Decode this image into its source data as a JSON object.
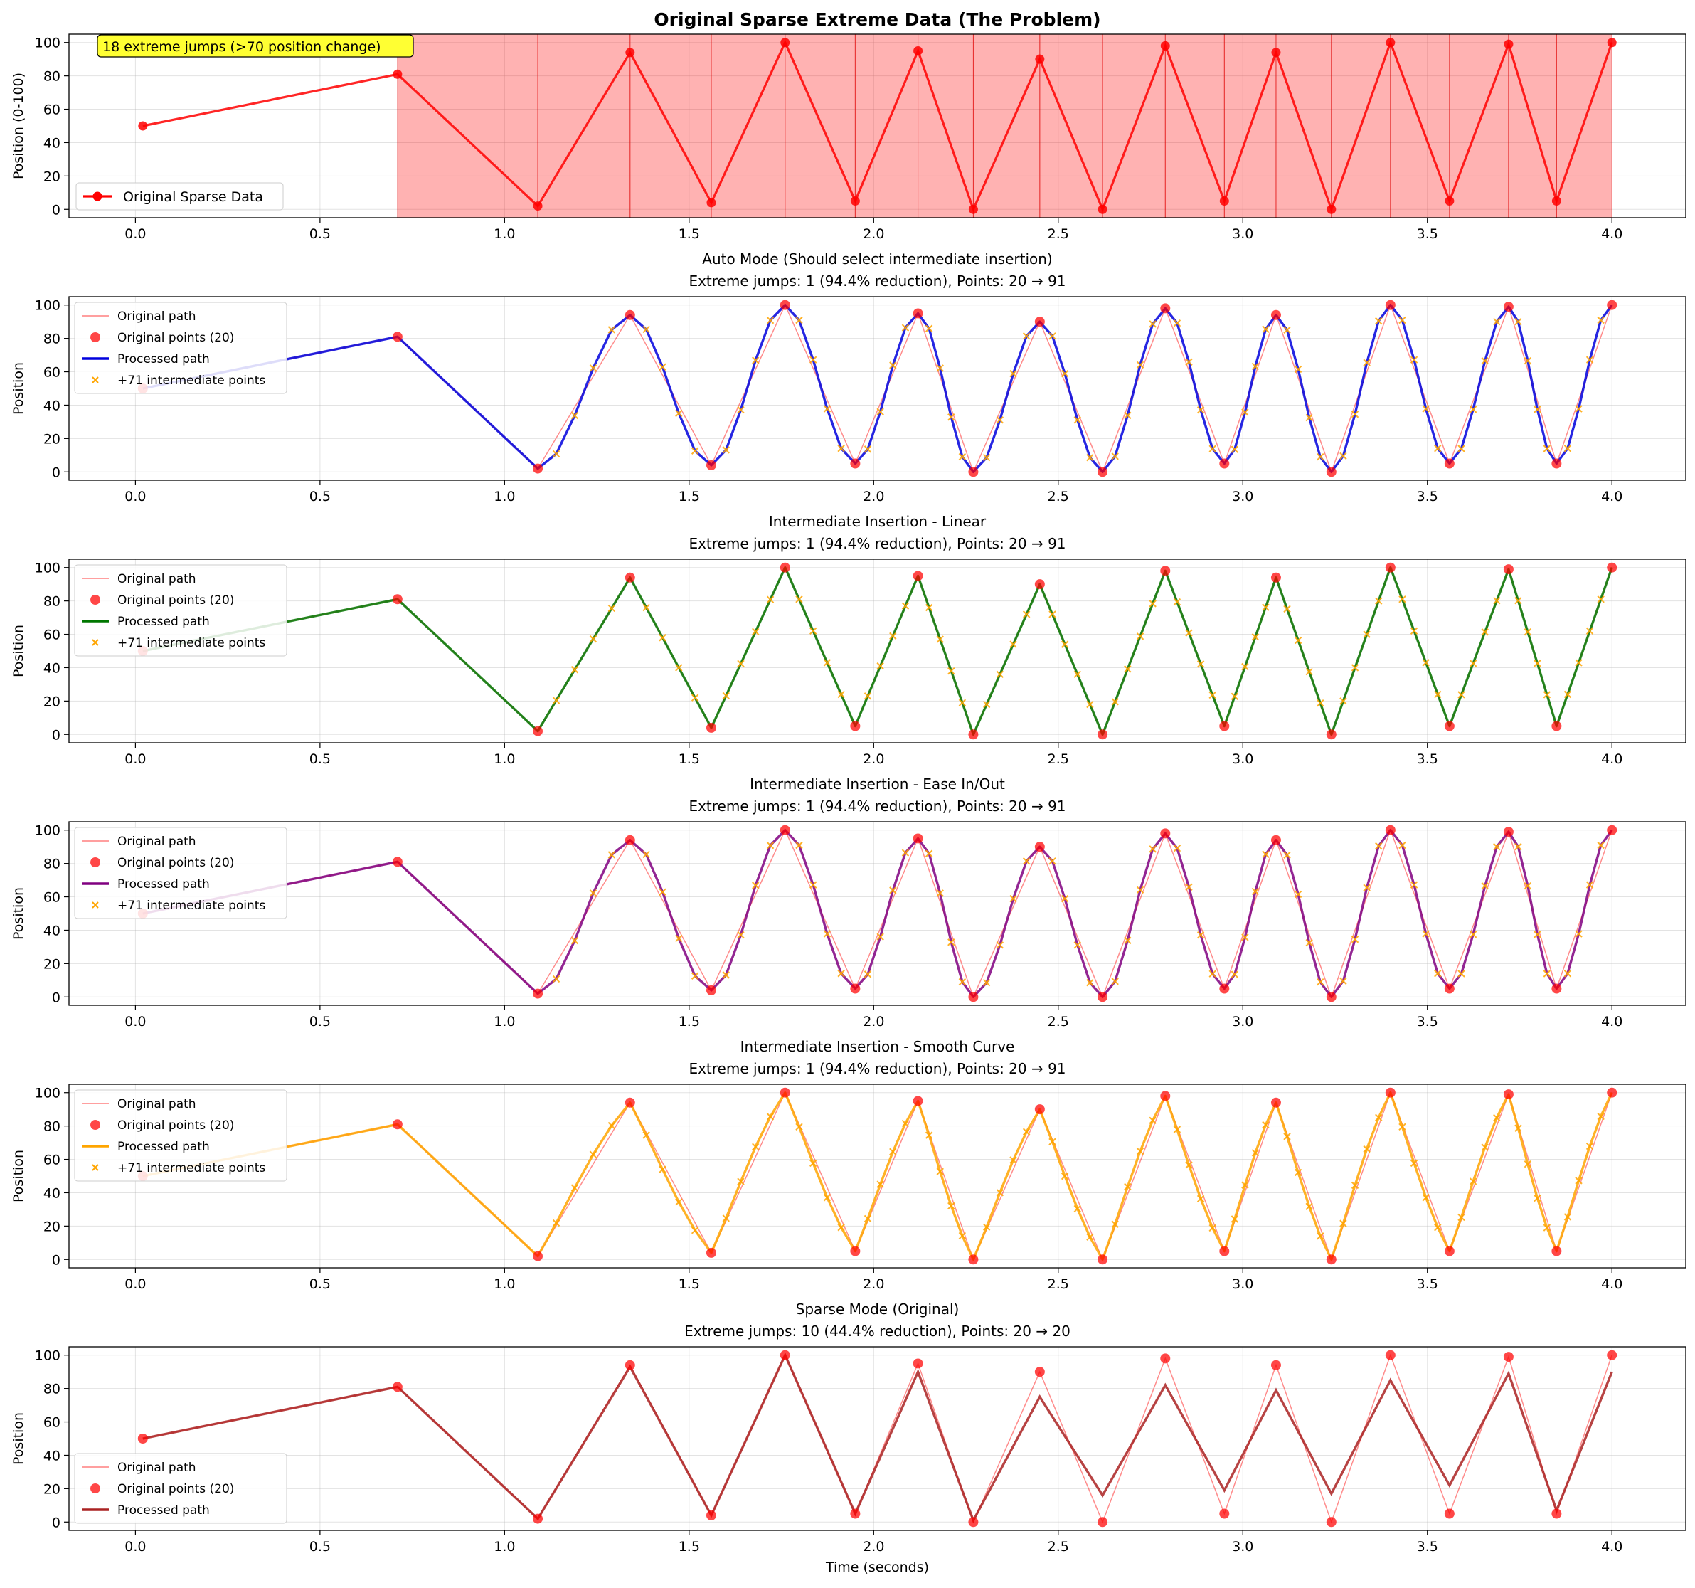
{
  "colors": {
    "original": "#ff0000",
    "intermediate": "#ffa500",
    "grid": "#b0b0b0"
  },
  "chart_data": [
    {
      "type": "line",
      "title": "Original Sparse Extreme Data (The Problem)",
      "title_bold": true,
      "subtitle": "",
      "ylabel": "Position (0-100)",
      "xlabel": "",
      "xlim": [
        -0.18,
        4.2
      ],
      "ylim": [
        -5,
        105
      ],
      "xticks": [
        0.0,
        0.5,
        1.0,
        1.5,
        2.0,
        2.5,
        3.0,
        3.5,
        4.0
      ],
      "yticks": [
        0,
        20,
        40,
        60,
        80,
        100
      ],
      "annotation": "18 extreme jumps (>70 position change)",
      "legend_placement": "lower-left",
      "legend": [
        "Original Sparse Data"
      ],
      "line_color": "#ff0000"
    },
    {
      "type": "line",
      "title": "Auto Mode (Should select intermediate insertion)",
      "subtitle": "Extreme jumps: 1 (94.4% reduction), Points: 20 → 91",
      "ylabel": "Position",
      "xlabel": "",
      "xlim": [
        -0.18,
        4.2
      ],
      "ylim": [
        -5,
        105
      ],
      "xticks": [
        0.0,
        0.5,
        1.0,
        1.5,
        2.0,
        2.5,
        3.0,
        3.5,
        4.0
      ],
      "yticks": [
        0,
        20,
        40,
        60,
        80,
        100
      ],
      "mode": "ease",
      "line_color": "#0000dd",
      "legend_placement": "upper-left",
      "legend": [
        "Original path",
        "Original points (20)",
        "Processed path",
        "+71 intermediate points"
      ]
    },
    {
      "type": "line",
      "title": "Intermediate Insertion - Linear",
      "subtitle": "Extreme jumps: 1 (94.4% reduction), Points: 20 → 91",
      "ylabel": "Position",
      "xlabel": "",
      "xlim": [
        -0.18,
        4.2
      ],
      "ylim": [
        -5,
        105
      ],
      "xticks": [
        0.0,
        0.5,
        1.0,
        1.5,
        2.0,
        2.5,
        3.0,
        3.5,
        4.0
      ],
      "yticks": [
        0,
        20,
        40,
        60,
        80,
        100
      ],
      "mode": "linear",
      "line_color": "#007700",
      "legend_placement": "upper-left",
      "legend": [
        "Original path",
        "Original points (20)",
        "Processed path",
        "+71 intermediate points"
      ]
    },
    {
      "type": "line",
      "title": "Intermediate Insertion - Ease In/Out",
      "subtitle": "Extreme jumps: 1 (94.4% reduction), Points: 20 → 91",
      "ylabel": "Position",
      "xlabel": "",
      "xlim": [
        -0.18,
        4.2
      ],
      "ylim": [
        -5,
        105
      ],
      "xticks": [
        0.0,
        0.5,
        1.0,
        1.5,
        2.0,
        2.5,
        3.0,
        3.5,
        4.0
      ],
      "yticks": [
        0,
        20,
        40,
        60,
        80,
        100
      ],
      "mode": "ease",
      "line_color": "#800080",
      "legend_placement": "upper-left",
      "legend": [
        "Original path",
        "Original points (20)",
        "Processed path",
        "+71 intermediate points"
      ]
    },
    {
      "type": "line",
      "title": "Intermediate Insertion - Smooth Curve",
      "subtitle": "Extreme jumps: 1 (94.4% reduction), Points: 20 → 91",
      "ylabel": "Position",
      "xlabel": "",
      "xlim": [
        -0.18,
        4.2
      ],
      "ylim": [
        -5,
        105
      ],
      "xticks": [
        0.0,
        0.5,
        1.0,
        1.5,
        2.0,
        2.5,
        3.0,
        3.5,
        4.0
      ],
      "yticks": [
        0,
        20,
        40,
        60,
        80,
        100
      ],
      "mode": "smooth",
      "line_color": "#ffa500",
      "legend_placement": "upper-left",
      "legend": [
        "Original path",
        "Original points (20)",
        "Processed path",
        "+71 intermediate points"
      ]
    },
    {
      "type": "line",
      "title": "Sparse Mode (Original)",
      "subtitle": "Extreme jumps: 10 (44.4% reduction), Points: 20 → 20",
      "ylabel": "Position",
      "xlabel": "Time (seconds)",
      "xlim": [
        -0.18,
        4.2
      ],
      "ylim": [
        -5,
        105
      ],
      "xticks": [
        0.0,
        0.5,
        1.0,
        1.5,
        2.0,
        2.5,
        3.0,
        3.5,
        4.0
      ],
      "yticks": [
        0,
        20,
        40,
        60,
        80,
        100
      ],
      "mode": "sparse",
      "line_color": "#aa2222",
      "legend_placement": "lower-left",
      "legend": [
        "Original path",
        "Original points (20)",
        "Processed path"
      ],
      "processed_y": [
        50,
        81,
        2,
        93,
        4,
        100,
        5,
        90,
        1,
        75,
        16,
        82,
        19,
        79,
        17,
        85,
        22,
        89,
        7,
        90
      ]
    }
  ],
  "series": {
    "original_x": [
      0.02,
      0.71,
      1.09,
      1.34,
      1.56,
      1.76,
      1.95,
      2.12,
      2.27,
      2.45,
      2.62,
      2.79,
      2.95,
      3.09,
      3.24,
      3.4,
      3.56,
      3.72,
      3.85,
      4.0
    ],
    "original_y": [
      50,
      81,
      2,
      94,
      4,
      100,
      5,
      95,
      0,
      90,
      0,
      98,
      5,
      94,
      0,
      100,
      5,
      99,
      5,
      100
    ]
  }
}
